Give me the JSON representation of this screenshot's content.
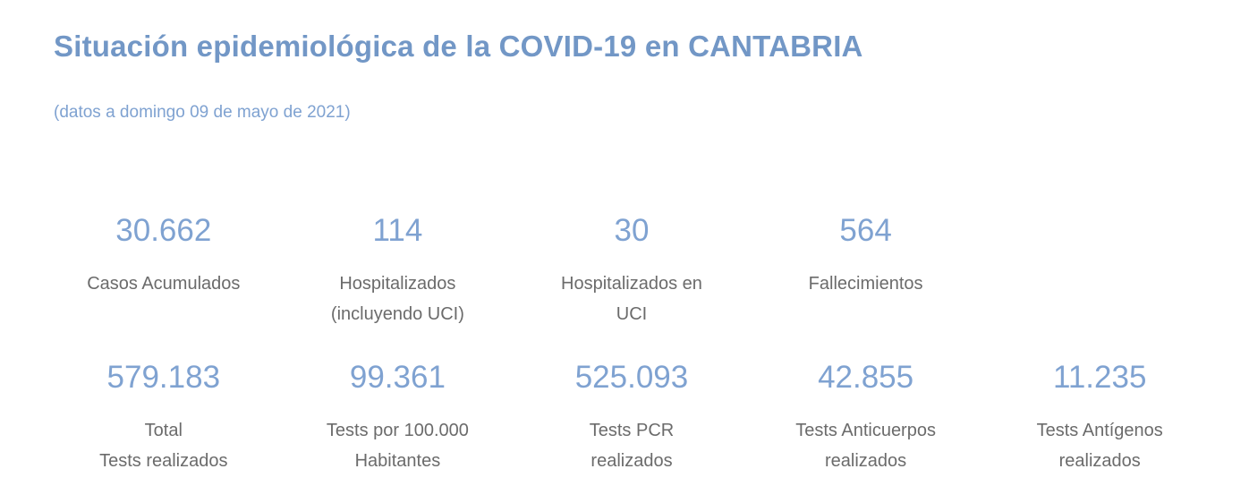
{
  "header": {
    "title": "Situación epidemiológica de la COVID-19 en CANTABRIA",
    "subtitle": "(datos a domingo 09 de mayo de 2021)"
  },
  "colors": {
    "title_blue": "#7297C6",
    "value_blue": "#7FA2D1",
    "label_gray": "#6B6B6B",
    "background": "#FFFFFF"
  },
  "stats": {
    "row1": [
      {
        "value": "30.662",
        "label_lines": [
          "Casos Acumulados"
        ]
      },
      {
        "value": "114",
        "label_lines": [
          "Hospitalizados",
          "(incluyendo UCI)"
        ]
      },
      {
        "value": "30",
        "label_lines": [
          "Hospitalizados en",
          "UCI"
        ]
      },
      {
        "value": "564",
        "label_lines": [
          "Fallecimientos"
        ]
      }
    ],
    "row2": [
      {
        "value": "579.183",
        "label_lines": [
          "Total",
          "Tests realizados"
        ]
      },
      {
        "value": "99.361",
        "label_lines": [
          "Tests por 100.000",
          "Habitantes"
        ]
      },
      {
        "value": "525.093",
        "label_lines": [
          "Tests PCR",
          "realizados"
        ]
      },
      {
        "value": "42.855",
        "label_lines": [
          "Tests Anticuerpos",
          "realizados"
        ]
      },
      {
        "value": "11.235",
        "label_lines": [
          "Tests Antígenos",
          "realizados"
        ]
      }
    ]
  },
  "chart_data": {
    "type": "table",
    "title": "Situación epidemiológica de la COVID-19 en CANTABRIA",
    "subtitle": "(datos a domingo 09 de mayo de 2021)",
    "metrics": [
      {
        "label": "Casos Acumulados",
        "value": 30662
      },
      {
        "label": "Hospitalizados (incluyendo UCI)",
        "value": 114
      },
      {
        "label": "Hospitalizados en UCI",
        "value": 30
      },
      {
        "label": "Fallecimientos",
        "value": 564
      },
      {
        "label": "Total Tests realizados",
        "value": 579183
      },
      {
        "label": "Tests por 100.000 Habitantes",
        "value": 99361
      },
      {
        "label": "Tests PCR realizados",
        "value": 525093
      },
      {
        "label": "Tests Anticuerpos realizados",
        "value": 42855
      },
      {
        "label": "Tests Antígenos realizados",
        "value": 11235
      }
    ]
  }
}
